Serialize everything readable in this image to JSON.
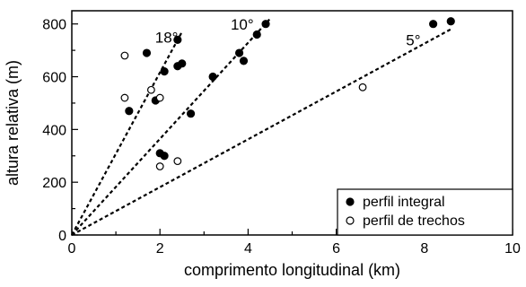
{
  "chart_data": {
    "type": "scatter",
    "title": "",
    "xlabel": "comprimento longitudinal (km)",
    "ylabel": "altura relativa (m)",
    "xlim": [
      0,
      10
    ],
    "ylim": [
      0,
      850
    ],
    "xticks": [
      0,
      2,
      4,
      6,
      8,
      10
    ],
    "yticks": [
      0,
      200,
      400,
      600,
      800
    ],
    "grid": false,
    "legend_position": "bottom-right",
    "series": [
      {
        "name": "perfil integral",
        "marker": "filled-circle",
        "color": "#000000",
        "x": [
          1.3,
          1.7,
          1.9,
          2.0,
          2.1,
          2.1,
          2.4,
          2.4,
          2.5,
          2.7,
          3.2,
          3.8,
          3.9,
          4.2,
          4.4,
          8.2,
          8.6
        ],
        "y": [
          470,
          690,
          510,
          310,
          300,
          620,
          640,
          740,
          650,
          460,
          600,
          690,
          660,
          760,
          800,
          800,
          810
        ]
      },
      {
        "name": "perfil de trechos",
        "marker": "open-circle",
        "color": "#000000",
        "x": [
          1.2,
          1.2,
          1.8,
          2.0,
          2.0,
          2.4,
          6.6
        ],
        "y": [
          680,
          520,
          550,
          520,
          260,
          280,
          560
        ]
      }
    ],
    "reference_lines": [
      {
        "label": "18°",
        "x_end": 2.5,
        "y_end": 770
      },
      {
        "label": "10°",
        "x_end": 4.5,
        "y_end": 820
      },
      {
        "label": "5°",
        "x_end": 8.6,
        "y_end": 780
      }
    ]
  }
}
